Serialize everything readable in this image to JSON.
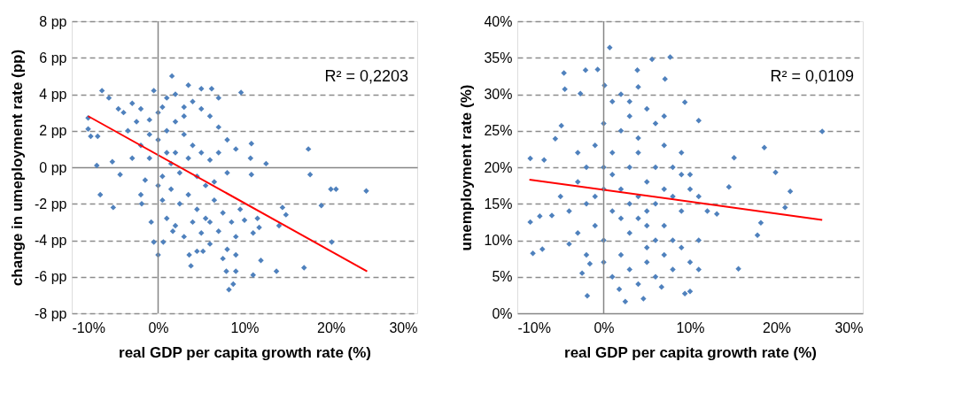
{
  "chart_data": [
    {
      "type": "scatter",
      "xlabel": "real GDP per capita growth rate (%)",
      "ylabel": "change in umeployment rate (pp)",
      "grid": "y",
      "xlim": [
        -10,
        30
      ],
      "xticks": [
        {
          "value": -10,
          "label": "-10%"
        },
        {
          "value": 0,
          "label": "0%"
        },
        {
          "value": 10,
          "label": "10%"
        },
        {
          "value": 20,
          "label": "20%"
        },
        {
          "value": 30,
          "label": "30%"
        }
      ],
      "ylim": [
        -8,
        8
      ],
      "yticks": [
        {
          "value": -8,
          "label": "-8 pp"
        },
        {
          "value": -6,
          "label": "-6 pp"
        },
        {
          "value": -4,
          "label": "-4 pp"
        },
        {
          "value": -2,
          "label": "-2 pp"
        },
        {
          "value": 0,
          "label": "0 pp"
        },
        {
          "value": 2,
          "label": "2 pp"
        },
        {
          "value": 4,
          "label": "4 pp"
        },
        {
          "value": 6,
          "label": "6 pp"
        },
        {
          "value": 8,
          "label": "8 pp"
        }
      ],
      "ref_lines": [
        {
          "axis": "x",
          "value": 0,
          "color": "#868686"
        }
      ],
      "annotations": [
        "R² = 0,2203"
      ],
      "series": [
        {
          "type": "scatter",
          "marker": "diamond",
          "color": "#4f81bd",
          "x": [
            -6.5,
            -5.7,
            -8.1,
            -8.1,
            -7.8,
            -7,
            -7.1,
            -6.7,
            -5.2,
            -5.3,
            -4.6,
            -4.4,
            -0.8,
            -0.5,
            0,
            -1.9,
            1.6,
            3.5,
            6.2,
            9.6,
            17.4,
            17.6,
            20,
            20.6,
            24.1,
            18.9,
            20.1,
            16.9,
            13.7,
            11.9,
            11,
            8.2,
            8.7,
            9,
            7.9,
            3.8,
            5.2,
            3.6,
            12.5,
            10.8,
            10.7,
            10.8,
            14.4,
            14.8,
            14,
            11.7,
            11.5,
            1.7,
            0.6,
            -3,
            -2,
            -1,
            0,
            1,
            2,
            3,
            4,
            5,
            6,
            7,
            8,
            -3.5,
            -2,
            -1,
            0,
            1,
            2,
            3,
            4,
            5,
            6,
            7,
            9,
            -3,
            -1.5,
            0.5,
            1.5,
            2.5,
            3.5,
            4.5,
            5.5,
            6.5,
            8,
            -2,
            0.5,
            1.5,
            2.5,
            3.5,
            4.5,
            5.5,
            6.5,
            7.5,
            8.5,
            9.5,
            1,
            2,
            3,
            4,
            5,
            6,
            7,
            8,
            9,
            10,
            4.5,
            7.5,
            3,
            2,
            -1,
            0,
            1,
            -2.5,
            -4,
            6,
            9,
            11,
            -0.5,
            0.5,
            7,
            5
          ],
          "values": [
            4.2,
            3.8,
            2.7,
            2.1,
            1.7,
            1.7,
            0.1,
            -1.5,
            -2.2,
            0.3,
            3.2,
            -0.4,
            -3,
            -4.1,
            -4.8,
            -2,
            5,
            4.5,
            4.3,
            4.1,
            1,
            -0.4,
            -1.2,
            -1.2,
            -1.3,
            -2.1,
            -4.1,
            -5.5,
            -5.7,
            -5.1,
            -5.9,
            -6.7,
            -6.4,
            -5.7,
            -5.7,
            -5.4,
            -4.6,
            -4.8,
            0.2,
            1.3,
            0.5,
            -0.4,
            -2.2,
            -2.6,
            -3.2,
            -3.3,
            -2.8,
            -3.5,
            -4.1,
            3.5,
            3.2,
            2.6,
            3,
            3.8,
            4,
            3.3,
            3.6,
            3.2,
            2.8,
            2.2,
            1.5,
            2,
            1.2,
            0.5,
            1.5,
            2,
            2.5,
            1.8,
            1.2,
            0.8,
            0.4,
            0.8,
            1,
            0.5,
            -0.7,
            -0.5,
            0.2,
            -0.3,
            0.5,
            -0.5,
            -1,
            -0.8,
            -0.3,
            -1.5,
            -1.8,
            -1.2,
            -2,
            -1.5,
            -2.3,
            -2.8,
            -1.8,
            -2.5,
            -3,
            -2.3,
            -2.8,
            -3.2,
            -3.8,
            -3,
            -3.6,
            -4.2,
            -3.5,
            -4.5,
            -3.8,
            -2.9,
            -4.6,
            -5,
            2.8,
            0.8,
            1.8,
            -1,
            0.8,
            2.5,
            3,
            -3,
            -4.8,
            -3.6,
            4.2,
            3.3,
            3.8,
            4.3
          ]
        },
        {
          "type": "line",
          "color": "#ff0000",
          "x": [
            -8.1,
            24.2
          ],
          "values": [
            2.8,
            -5.7
          ]
        }
      ]
    },
    {
      "type": "scatter",
      "xlabel": "real GDP per capita growth rate (%)",
      "ylabel": "unemployment rate (%)",
      "grid": "y",
      "xlim": [
        -10,
        30
      ],
      "xticks": [
        {
          "value": -10,
          "label": "-10%"
        },
        {
          "value": 0,
          "label": "0%"
        },
        {
          "value": 10,
          "label": "10%"
        },
        {
          "value": 20,
          "label": "20%"
        },
        {
          "value": 30,
          "label": "30%"
        }
      ],
      "ylim": [
        0,
        40
      ],
      "yticks": [
        {
          "value": 0,
          "label": "0%"
        },
        {
          "value": 5,
          "label": "5%"
        },
        {
          "value": 10,
          "label": "10%"
        },
        {
          "value": 15,
          "label": "15%"
        },
        {
          "value": 20,
          "label": "20%"
        },
        {
          "value": 25,
          "label": "25%"
        },
        {
          "value": 30,
          "label": "30%"
        },
        {
          "value": 35,
          "label": "35%"
        },
        {
          "value": 40,
          "label": "40%"
        }
      ],
      "ref_lines": [
        {
          "axis": "x",
          "value": 0,
          "color": "#868686"
        }
      ],
      "annotations": [
        "R² = 0,0109"
      ],
      "series": [
        {
          "type": "scatter",
          "marker": "diamond",
          "color": "#4f81bd",
          "x": [
            0.7,
            7.7,
            5.6,
            -4.6,
            -2.1,
            -0.7,
            0.1,
            3.9,
            7.1,
            -4.5,
            -2.7,
            9.4,
            11,
            -5.6,
            -4.9,
            -8.5,
            -6.9,
            -8.2,
            -7.1,
            -8.5,
            -7.4,
            -6,
            -2.5,
            -1.6,
            15.1,
            18.6,
            25.3,
            19.9,
            21.6,
            21,
            18.2,
            17.8,
            15.6,
            14.5,
            13.1,
            -1.9,
            1.8,
            2.5,
            4.6,
            6.7,
            9.4,
            10,
            -3,
            -2,
            -1,
            0,
            1,
            2,
            3,
            4,
            5,
            6,
            7,
            8,
            9,
            10,
            11,
            -2,
            -1,
            0,
            1,
            2,
            3,
            4,
            5,
            6,
            7,
            8,
            9,
            10,
            -3,
            -2,
            0,
            1,
            2,
            3,
            4,
            5,
            6,
            7,
            8,
            9,
            10,
            11,
            0,
            1,
            2,
            3,
            4,
            5,
            6,
            7,
            8,
            9,
            -1,
            0,
            1,
            3,
            4,
            5,
            6,
            2,
            3,
            7,
            12,
            11,
            -4,
            -5,
            -4,
            -3,
            5,
            4
          ],
          "values": [
            36.4,
            35.1,
            34.8,
            32.9,
            33.3,
            33.4,
            31.2,
            33.3,
            32.1,
            30.7,
            30.1,
            28.9,
            26.4,
            23.9,
            25.7,
            21.2,
            21,
            8.2,
            8.8,
            12.5,
            13.3,
            13.4,
            5.5,
            6.8,
            21.3,
            22.7,
            24.9,
            19.3,
            16.7,
            14.5,
            12.4,
            10.7,
            6.1,
            17.3,
            13.6,
            2.4,
            3.3,
            1.6,
            2,
            3.6,
            2.7,
            3,
            18,
            15,
            12,
            10,
            14,
            17,
            20,
            22,
            18,
            15,
            12,
            10,
            14,
            17,
            16,
            20,
            23,
            26,
            29,
            25,
            27,
            24,
            28,
            26,
            23,
            20,
            22,
            19,
            11,
            8,
            7,
            5,
            8,
            6,
            4,
            7,
            5,
            8,
            6,
            9,
            7,
            10,
            17,
            19,
            13,
            15,
            13,
            12,
            20,
            17,
            16,
            19,
            16,
            20,
            22,
            11,
            16,
            14,
            10,
            30,
            29,
            27,
            14,
            6,
            14,
            16,
            9.5,
            22,
            9,
            31
          ]
        },
        {
          "type": "line",
          "color": "#ff0000",
          "x": [
            -8.6,
            25.3
          ],
          "values": [
            18.3,
            12.8
          ]
        }
      ]
    }
  ]
}
